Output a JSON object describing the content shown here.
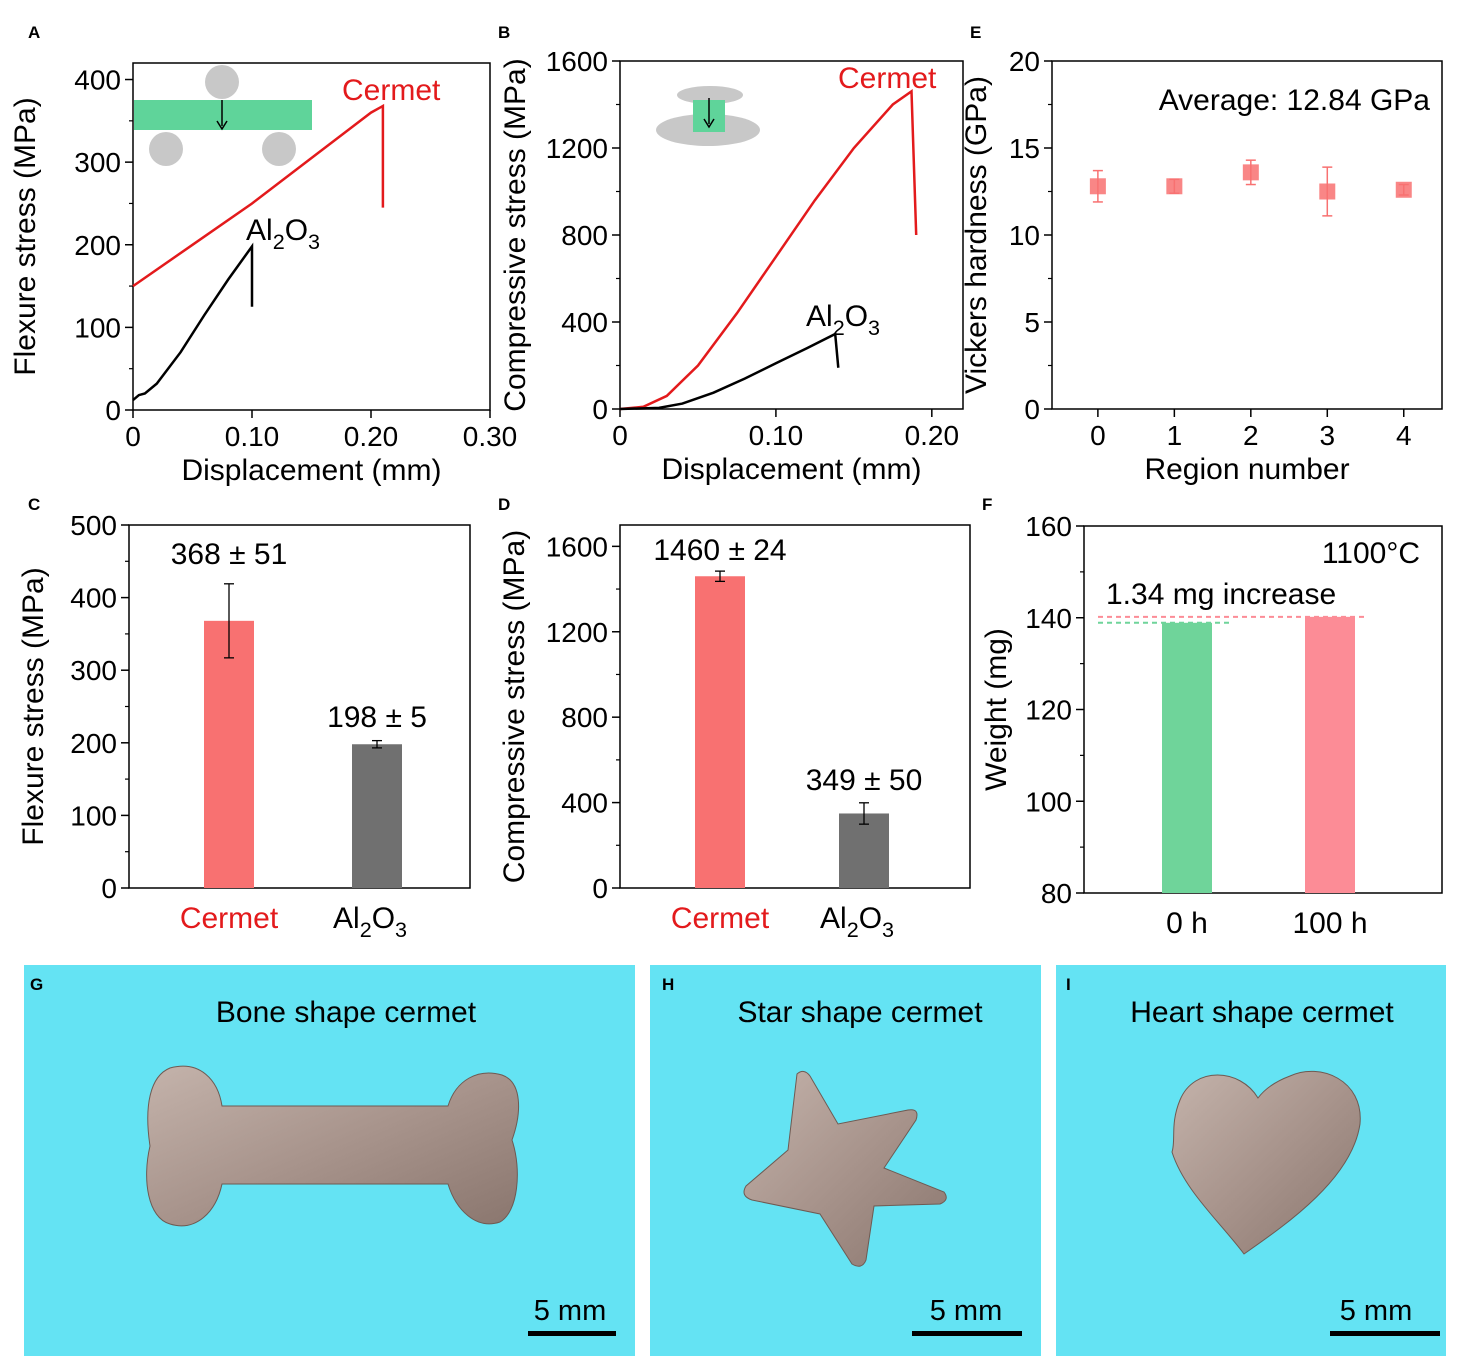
{
  "colors": {
    "cermet": "#e31a1c",
    "alumina": "#000000",
    "bar_cermet": "#f87171",
    "bar_alumina": "#707070",
    "bar_0h": "#6fd49a",
    "bar_100h": "#fc8c96",
    "photo_bg": "#64e3f3",
    "metal": "#a8948c",
    "inset_green": "#5fd49a",
    "inset_gray": "#c8c8c8"
  },
  "chart_data": [
    {
      "panel": "A",
      "type": "line",
      "xlabel": "Displacement (mm)",
      "ylabel": "Flexure stress (MPa)",
      "xlim": [
        0,
        0.3
      ],
      "ylim": [
        0,
        420
      ],
      "xticks": [
        0,
        0.1,
        0.2,
        0.3
      ],
      "xtick_labels": [
        "0",
        "0.10",
        "0.20",
        "0.30"
      ],
      "yticks": [
        0,
        100,
        200,
        300,
        400
      ],
      "ytick_labels": [
        "0",
        "100",
        "200",
        "300",
        "400"
      ],
      "series": [
        {
          "name": "Cermet",
          "label": "Cermet",
          "x": [
            0,
            0.05,
            0.1,
            0.15,
            0.2,
            0.21,
            0.21
          ],
          "y": [
            150,
            200,
            250,
            305,
            360,
            368,
            245
          ]
        },
        {
          "name": "Al2O3",
          "label_main": "Al",
          "label_sub1": "2",
          "label_mid": "O",
          "label_sub2": "3",
          "x": [
            0,
            0.005,
            0.01,
            0.02,
            0.04,
            0.06,
            0.08,
            0.1,
            0.1
          ],
          "y": [
            12,
            18,
            20,
            32,
            70,
            115,
            158,
            198,
            125
          ]
        }
      ],
      "inset": "three-point bending schematic"
    },
    {
      "panel": "B",
      "type": "line",
      "xlabel": "Displacement (mm)",
      "ylabel": "Compressive stress (MPa)",
      "xlim": [
        0,
        0.22
      ],
      "ylim": [
        0,
        1600
      ],
      "xticks": [
        0,
        0.1,
        0.2
      ],
      "xtick_labels": [
        "0",
        "0.10",
        "0.20"
      ],
      "yticks": [
        0,
        400,
        800,
        1200,
        1600
      ],
      "ytick_labels": [
        "0",
        "400",
        "800",
        "1200",
        "1600"
      ],
      "series": [
        {
          "name": "Cermet",
          "label": "Cermet",
          "x": [
            0,
            0.015,
            0.03,
            0.05,
            0.075,
            0.1,
            0.125,
            0.15,
            0.175,
            0.187,
            0.19
          ],
          "y": [
            0,
            10,
            60,
            200,
            440,
            700,
            960,
            1200,
            1400,
            1460,
            800
          ]
        },
        {
          "name": "Al2O3",
          "label_main": "Al",
          "label_sub1": "2",
          "label_mid": "O",
          "label_sub2": "3",
          "x": [
            0,
            0.025,
            0.04,
            0.06,
            0.08,
            0.1,
            0.12,
            0.138,
            0.14
          ],
          "y": [
            0,
            5,
            25,
            75,
            140,
            210,
            280,
            345,
            190
          ]
        }
      ],
      "inset": "compression schematic"
    },
    {
      "panel": "E",
      "type": "scatter",
      "xlabel": "Region number",
      "ylabel": "Vickers hardness (GPa)",
      "xlim": [
        -0.6,
        4.5
      ],
      "ylim": [
        0,
        20
      ],
      "xticks": [
        0,
        1,
        2,
        3,
        4
      ],
      "xtick_labels": [
        "0",
        "1",
        "2",
        "3",
        "4"
      ],
      "yticks": [
        0,
        5,
        10,
        15,
        20
      ],
      "ytick_labels": [
        "0",
        "5",
        "10",
        "15",
        "20"
      ],
      "x": [
        0,
        1,
        2,
        3,
        4
      ],
      "y": [
        12.8,
        12.8,
        13.6,
        12.5,
        12.6
      ],
      "err": [
        0.9,
        0.4,
        0.7,
        1.4,
        0.3
      ],
      "annotation": "Average: 12.84 GPa"
    },
    {
      "panel": "C",
      "type": "bar",
      "ylabel": "Flexure stress (MPa)",
      "ylim": [
        0,
        500
      ],
      "yticks": [
        0,
        100,
        200,
        300,
        400,
        500
      ],
      "ytick_labels": [
        "0",
        "100",
        "200",
        "300",
        "400",
        "500"
      ],
      "categories": [
        "Cermet",
        "Al2O3"
      ],
      "values": [
        368,
        198
      ],
      "errors": [
        51,
        5
      ],
      "value_labels": [
        "368 ± 51",
        "198 ± 5"
      ]
    },
    {
      "panel": "D",
      "type": "bar",
      "ylabel": "Compressive stress (MPa)",
      "ylim": [
        0,
        1700
      ],
      "yticks": [
        0,
        400,
        800,
        1200,
        1600
      ],
      "ytick_labels": [
        "0",
        "400",
        "800",
        "1200",
        "1600"
      ],
      "categories": [
        "Cermet",
        "Al2O3"
      ],
      "values": [
        1460,
        349
      ],
      "errors": [
        24,
        50
      ],
      "value_labels": [
        "1460 ± 24",
        "349 ± 50"
      ]
    },
    {
      "panel": "F",
      "type": "bar",
      "ylabel": "Weight (mg)",
      "ylim": [
        80,
        160
      ],
      "yticks": [
        80,
        100,
        120,
        140,
        160
      ],
      "ytick_labels": [
        "80",
        "100",
        "120",
        "140",
        "160"
      ],
      "categories": [
        "0 h",
        "100 h"
      ],
      "values": [
        138.9,
        140.2
      ],
      "temperature_label": "1100°C",
      "annotation": "1.34 mg increase"
    }
  ],
  "photos": [
    {
      "panel": "G",
      "title": "Bone shape cermet",
      "scale_label": "5 mm"
    },
    {
      "panel": "H",
      "title": "Star shape cermet",
      "scale_label": "5 mm"
    },
    {
      "panel": "I",
      "title": "Heart shape cermet",
      "scale_label": "5 mm"
    }
  ]
}
